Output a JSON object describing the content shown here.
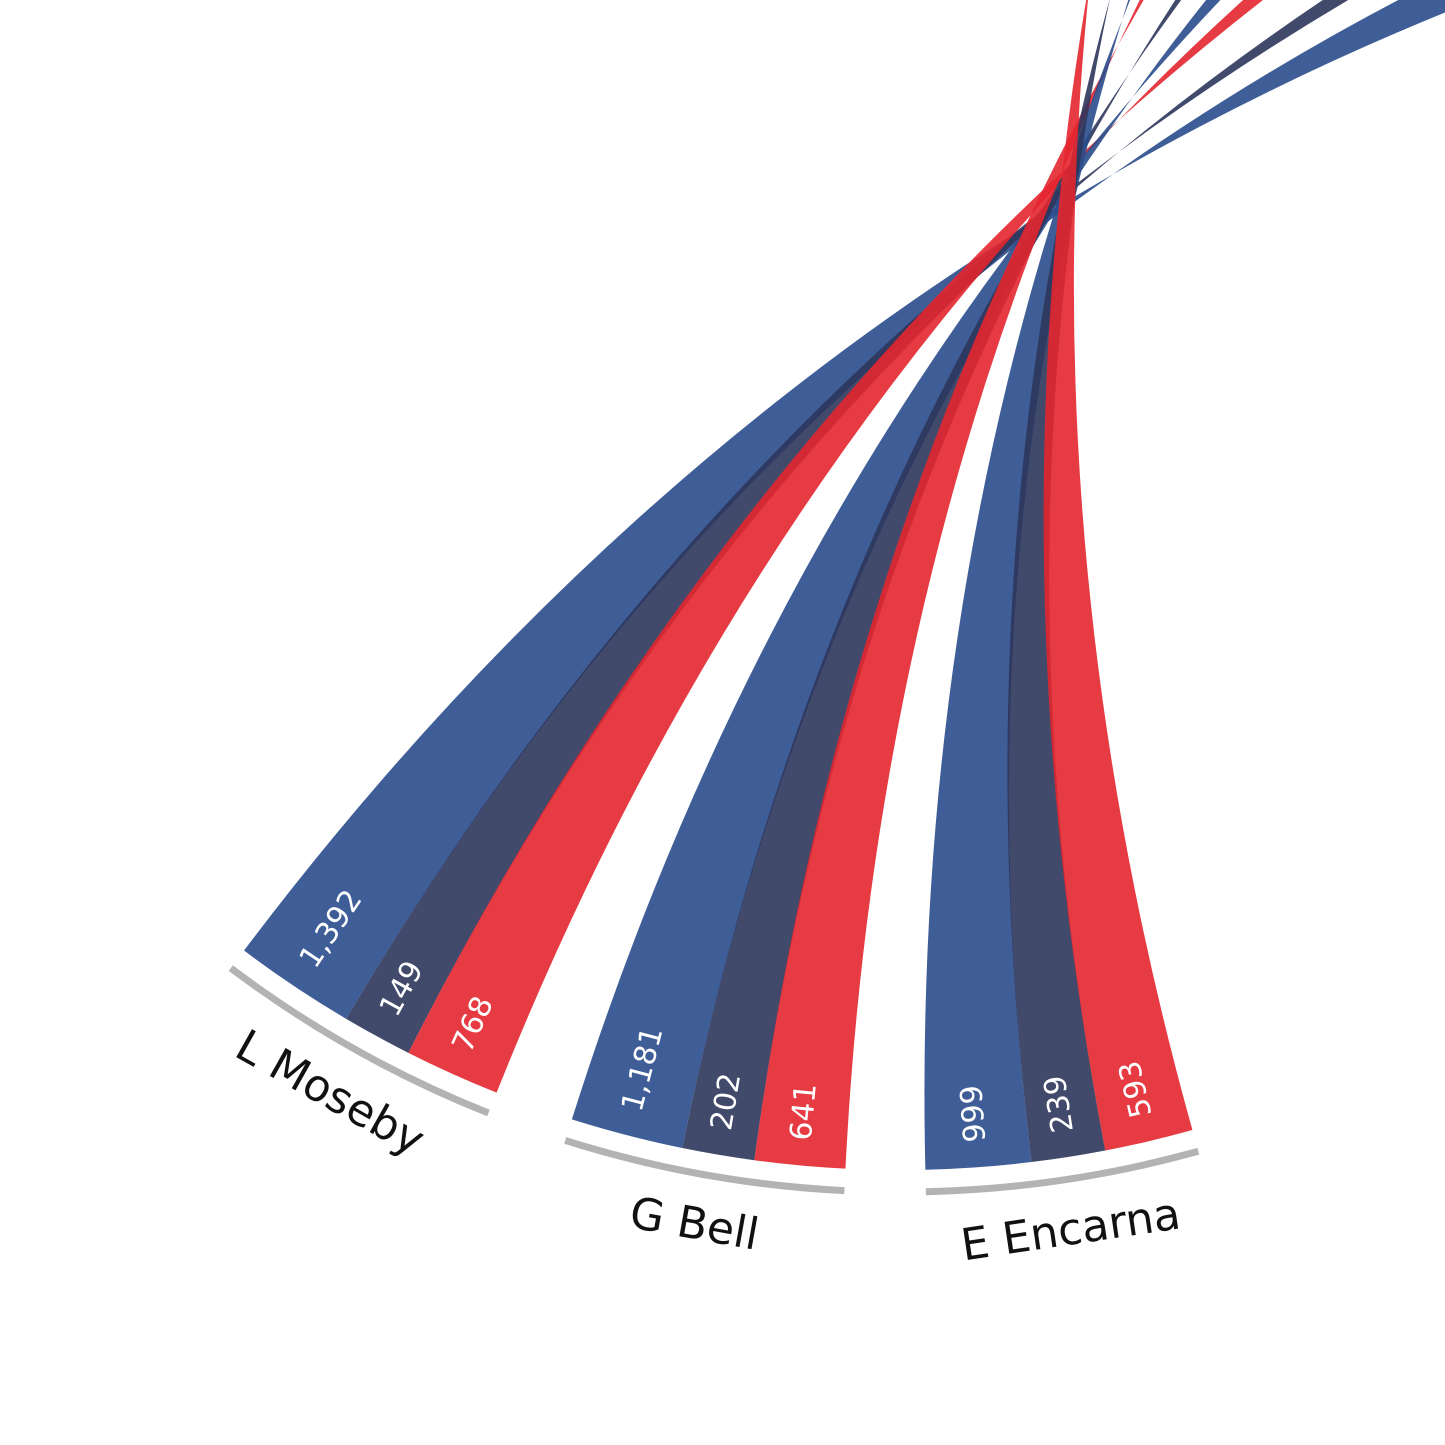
{
  "chart_data": {
    "type": "chord",
    "colors": [
      "#2a4d8c",
      "#2e365c",
      "#e3262f"
    ],
    "groups": [
      {
        "name": "L Moseby",
        "values": [
          1392,
          149,
          768
        ],
        "value_labels": [
          "1,392",
          "149",
          "768"
        ]
      },
      {
        "name": "G Bell",
        "values": [
          1181,
          202,
          641
        ],
        "value_labels": [
          "1,181",
          "202",
          "641"
        ]
      },
      {
        "name": "E Encarna",
        "values": [
          999,
          239,
          593
        ],
        "value_labels": [
          "999",
          "239",
          "593"
        ]
      }
    ]
  }
}
